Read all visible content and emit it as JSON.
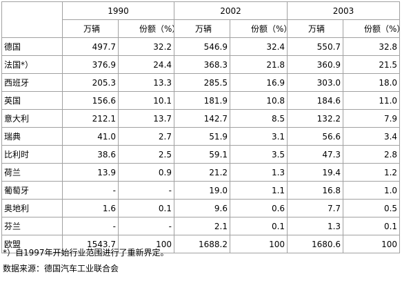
{
  "table": {
    "years": [
      "1990",
      "2002",
      "2003"
    ],
    "subheaders": [
      "万辆",
      "份额（%）",
      "万辆",
      "份额（%）",
      "万辆",
      "份额（%）"
    ],
    "rows": [
      [
        "德国",
        "497.7",
        "32.2",
        "546.9",
        "32.4",
        "550.7",
        "32.8"
      ],
      [
        "法国*）",
        "376.9",
        "24.4",
        "368.3",
        "21.8",
        "360.9",
        "21.5"
      ],
      [
        "西班牙",
        "205.3",
        "13.3",
        "285.5",
        "16.9",
        "303.0",
        "18.0"
      ],
      [
        "英国",
        "156.6",
        "10.1",
        "181.9",
        "10.8",
        "184.6",
        "11.0"
      ],
      [
        "意大利",
        "212.1",
        "13.7",
        "142.7",
        "8.5",
        "132.2",
        "7.9"
      ],
      [
        "瑞典",
        "41.0",
        "2.7",
        "51.9",
        "3.1",
        "56.6",
        "3.4"
      ],
      [
        "比利时",
        "38.6",
        "2.5",
        "59.1",
        "3.5",
        "47.3",
        "2.8"
      ],
      [
        "荷兰",
        "13.9",
        "0.9",
        "21.2",
        "1.3",
        "19.4",
        "1.2"
      ],
      [
        "葡萄牙",
        "-",
        "-",
        "19.0",
        "1.1",
        "16.8",
        "1.0"
      ],
      [
        "奥地利",
        "1.6",
        "0.1",
        "9.6",
        "0.6",
        "7.7",
        "0.5"
      ],
      [
        "芬兰",
        "-",
        "-",
        "2.1",
        "0.1",
        "1.3",
        "0.1"
      ],
      [
        "欧盟",
        "1543.7",
        "100",
        "1688.2",
        "100",
        "1680.6",
        "100"
      ]
    ]
  },
  "notes": [
    "*）自1997年开始行业范围进行了重新界定。",
    "数据来源：德国汽车工业联合会"
  ]
}
